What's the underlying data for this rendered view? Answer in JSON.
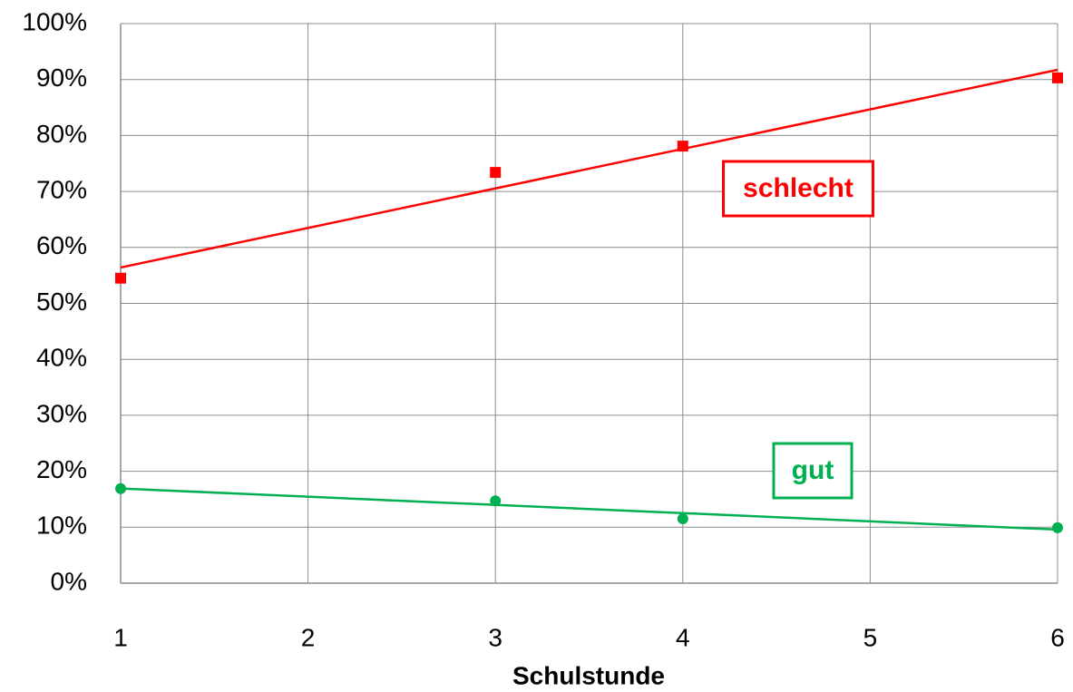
{
  "chart_data": {
    "type": "scatter",
    "trendline": "linear",
    "grid": true,
    "x_label": "Schulstunde",
    "xlim": [
      1,
      6
    ],
    "xticks": [
      1,
      2,
      3,
      4,
      5,
      6
    ],
    "ylim": [
      0,
      100
    ],
    "yticks": [
      {
        "value": 0,
        "label": "0%"
      },
      {
        "value": 10,
        "label": "10%"
      },
      {
        "value": 20,
        "label": "20%"
      },
      {
        "value": 30,
        "label": "30%"
      },
      {
        "value": 40,
        "label": "40%"
      },
      {
        "value": 50,
        "label": "50%"
      },
      {
        "value": 60,
        "label": "60%"
      },
      {
        "value": 70,
        "label": "70%"
      },
      {
        "value": 80,
        "label": "80%"
      },
      {
        "value": 90,
        "label": "90%"
      },
      {
        "value": 100,
        "label": "100%"
      }
    ],
    "series": [
      {
        "name": "schlecht",
        "color": "#ff0000",
        "marker": "square",
        "x": [
          1,
          3,
          4,
          6
        ],
        "values": [
          54.5,
          73.4,
          78.1,
          90.3
        ]
      },
      {
        "name": "gut",
        "color": "#00b050",
        "marker": "circle",
        "x": [
          1,
          3,
          4,
          6
        ],
        "values": [
          16.9,
          14.7,
          11.5,
          9.9
        ]
      }
    ]
  }
}
